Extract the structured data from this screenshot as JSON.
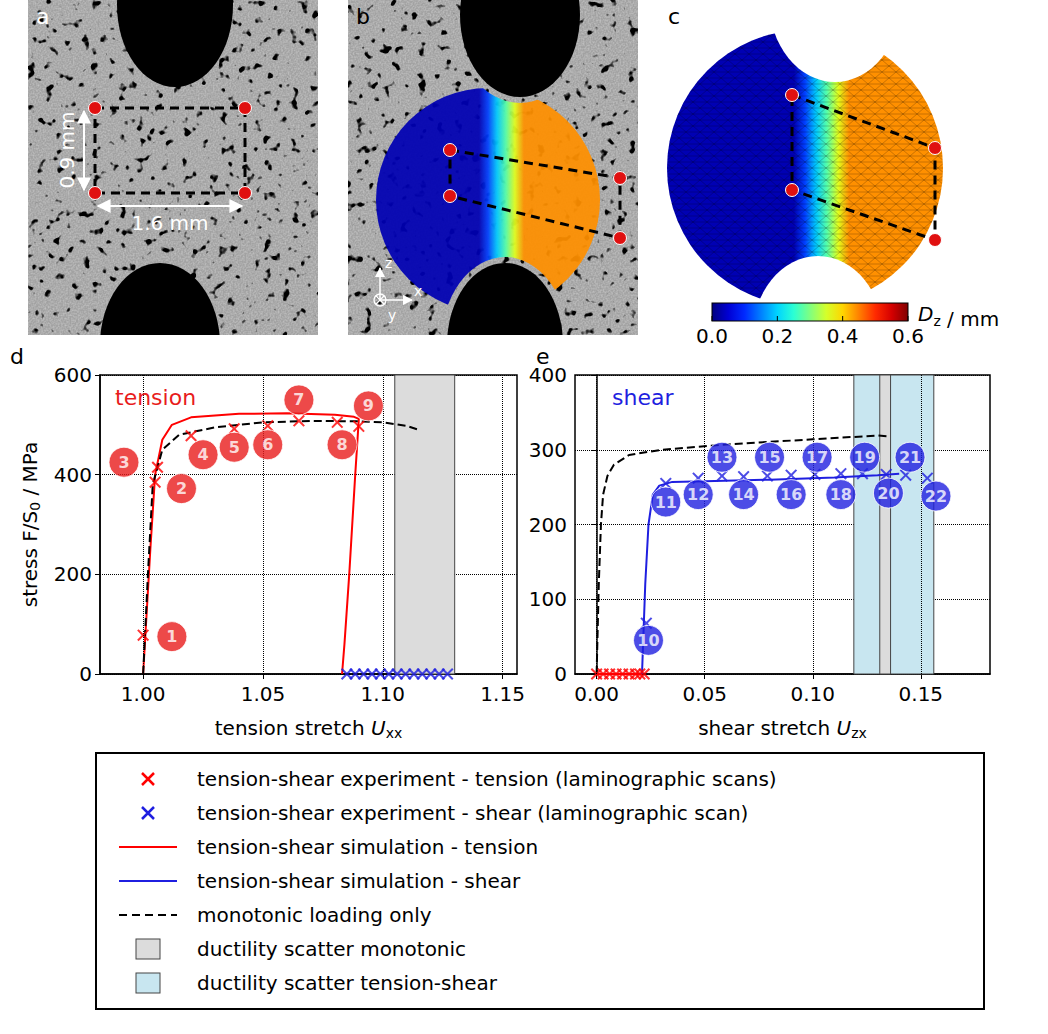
{
  "images": {
    "a": {
      "label": "a",
      "height_text": "0.9 mm",
      "width_text": "1.6 mm"
    },
    "b": {
      "label": "b",
      "axes": [
        "z",
        "y",
        "x"
      ]
    },
    "c": {
      "label": "c",
      "colorbar": {
        "range": [
          0,
          0.6
        ],
        "ticks": [
          {
            "value": 0,
            "label": "0.0"
          },
          {
            "value": 0.2,
            "label": "0.2"
          },
          {
            "value": 0.4,
            "label": "0.4"
          },
          {
            "value": 0.6,
            "label": "0.6"
          }
        ],
        "title": [
          {
            "text": "D",
            "italic": true
          },
          {
            "text": "z",
            "sub": true
          },
          {
            "text": " / mm"
          }
        ]
      }
    },
    "displacement_field": {
      "left": 0.03,
      "right": 0.44
    }
  },
  "chart_data": [
    {
      "type": "line",
      "panel": "d",
      "title": "tension",
      "color": "#e81c1c",
      "x_label": [
        {
          "text": "tension stretch "
        },
        {
          "text": "U",
          "italic": true
        },
        {
          "text": "xx",
          "sub": true
        }
      ],
      "y_label": [
        {
          "text": "stress F/S"
        },
        {
          "text": "0",
          "sub": true
        },
        {
          "text": " / MPa"
        }
      ],
      "xlim": [
        0.982,
        1.156
      ],
      "xticks": [
        {
          "value": 1,
          "label": "1.00"
        },
        {
          "value": 1.05,
          "label": "1.05"
        },
        {
          "value": 1.1,
          "label": "1.10"
        },
        {
          "value": 1.15,
          "label": "1.15"
        }
      ],
      "ylim": [
        0,
        600
      ],
      "yticks": [
        0,
        200,
        400,
        600
      ],
      "grid": true,
      "series": [
        {
          "name": "tension-shear experiment - tension (laminographic scans)",
          "type": "scatter",
          "marker": "x",
          "color": "#ff0000",
          "x": [
            1.0,
            1.005,
            1.006,
            1.02,
            1.038,
            1.052,
            1.065,
            1.081,
            1.09
          ],
          "values": [
            78,
            385,
            415,
            478,
            492,
            498,
            508,
            505,
            497
          ]
        },
        {
          "name": "tension-shear experiment - shear (laminographic scan)",
          "type": "scatter",
          "marker": "x",
          "color": "#1f1fe0",
          "x": [
            1.085,
            1.0885,
            1.092,
            1.0955,
            1.099,
            1.1025,
            1.106,
            1.1095,
            1.113,
            1.1165,
            1.12,
            1.1235,
            1.127
          ],
          "values": [
            0,
            0,
            0,
            0,
            0,
            0,
            0,
            0,
            0,
            0,
            0,
            0,
            0
          ]
        },
        {
          "name": "tension-shear simulation - tension",
          "type": "line",
          "line_style": "solid",
          "color": "#ff0000",
          "x": [
            1.0,
            1.003,
            1.005,
            1.008,
            1.012,
            1.02,
            1.04,
            1.06,
            1.08,
            1.088,
            1.09,
            1.0885,
            1.086,
            1.084,
            1.083
          ],
          "values": [
            0,
            250,
            400,
            470,
            500,
            515,
            522,
            523,
            520,
            516,
            512,
            400,
            200,
            60,
            0
          ]
        },
        {
          "name": "monotonic loading only",
          "type": "line",
          "line_style": "dashed",
          "color": "#000000",
          "x": [
            1.0,
            1.002,
            1.004,
            1.008,
            1.015,
            1.03,
            1.05,
            1.07,
            1.09,
            1.1,
            1.11,
            1.115
          ],
          "values": [
            0,
            200,
            380,
            450,
            480,
            495,
            505,
            508,
            507,
            505,
            498,
            490
          ]
        }
      ],
      "regions": [
        {
          "name": "ductility scatter monotonic",
          "color": "#dcdcdc",
          "x": [
            1.105,
            1.13
          ]
        }
      ],
      "annotations": [
        {
          "x": 1.012,
          "y": 75,
          "label": "1"
        },
        {
          "x": 1.016,
          "y": 372,
          "label": "2"
        },
        {
          "x": 0.992,
          "y": 425,
          "label": "3"
        },
        {
          "x": 1.025,
          "y": 440,
          "label": "4"
        },
        {
          "x": 1.038,
          "y": 455,
          "label": "5"
        },
        {
          "x": 1.052,
          "y": 460,
          "label": "6"
        },
        {
          "x": 1.065,
          "y": 550,
          "label": "7"
        },
        {
          "x": 1.083,
          "y": 460,
          "label": "8"
        },
        {
          "x": 1.094,
          "y": 538,
          "label": "9"
        }
      ]
    },
    {
      "type": "line",
      "panel": "e",
      "title": "shear",
      "color": "#1f1fe0",
      "x_label": [
        {
          "text": "shear stretch "
        },
        {
          "text": "U",
          "italic": true
        },
        {
          "text": "zx",
          "sub": true
        }
      ],
      "xlim": [
        -0.01,
        0.182
      ],
      "xticks": [
        {
          "value": 0,
          "label": "0.00"
        },
        {
          "value": 0.05,
          "label": "0.05"
        },
        {
          "value": 0.1,
          "label": "0.10"
        },
        {
          "value": 0.15,
          "label": "0.15"
        }
      ],
      "ylim": [
        0,
        400
      ],
      "yticks": [
        0,
        100,
        200,
        300,
        400
      ],
      "grid": true,
      "series": [
        {
          "name": "tension-shear experiment - tension (laminographic scans)",
          "type": "scatter",
          "marker": "x",
          "color": "#ff0000",
          "x": [
            0,
            0.003,
            0.006,
            0.009,
            0.012,
            0.015,
            0.018,
            0.02,
            0.022
          ],
          "values": [
            0,
            0,
            0,
            0,
            0,
            0,
            0,
            0,
            0
          ]
        },
        {
          "name": "tension-shear experiment - shear (laminographic scan)",
          "type": "scatter",
          "marker": "x",
          "color": "#1f1fe0",
          "x": [
            0.023,
            0.032,
            0.047,
            0.058,
            0.068,
            0.079,
            0.09,
            0.101,
            0.113,
            0.123,
            0.134,
            0.143,
            0.153
          ],
          "values": [
            68,
            255,
            262,
            265,
            264,
            265,
            266,
            267,
            268,
            268,
            267,
            266,
            262
          ]
        },
        {
          "name": "tension-shear simulation - tension",
          "type": "line",
          "line_style": "solid",
          "color": "#ff0000",
          "x": [
            0,
            0.021
          ],
          "values": [
            0,
            0
          ]
        },
        {
          "name": "tension-shear simulation - shear",
          "type": "line",
          "line_style": "solid",
          "color": "#1f1fe0",
          "x": [
            0.021,
            0.0225,
            0.024,
            0.026,
            0.029,
            0.035,
            0.05,
            0.08,
            0.11,
            0.13,
            0.14
          ],
          "values": [
            0,
            120,
            200,
            240,
            252,
            257,
            258,
            260,
            263,
            266,
            268
          ]
        },
        {
          "name": "monotonic loading only",
          "type": "line",
          "line_style": "dashed",
          "color": "#000000",
          "x": [
            0,
            0.001,
            0.002,
            0.003,
            0.005,
            0.008,
            0.015,
            0.03,
            0.06,
            0.1,
            0.13,
            0.135
          ],
          "values": [
            0,
            120,
            200,
            240,
            265,
            280,
            293,
            300,
            307,
            314,
            319,
            318
          ]
        }
      ],
      "regions": [
        {
          "name": "ductility scatter tension-shear",
          "color": "#c8e6f0",
          "x": [
            0.119,
            0.156
          ]
        },
        {
          "name": "ductility scatter monotonic",
          "color": "#dcdcdc",
          "x": [
            0.131,
            0.136
          ]
        }
      ],
      "annotations": [
        {
          "x": 0.024,
          "y": 45,
          "label": "10"
        },
        {
          "x": 0.032,
          "y": 230,
          "label": "11"
        },
        {
          "x": 0.047,
          "y": 240,
          "label": "12"
        },
        {
          "x": 0.058,
          "y": 290,
          "label": "13"
        },
        {
          "x": 0.068,
          "y": 240,
          "label": "14"
        },
        {
          "x": 0.08,
          "y": 290,
          "label": "15"
        },
        {
          "x": 0.09,
          "y": 240,
          "label": "16"
        },
        {
          "x": 0.102,
          "y": 290,
          "label": "17"
        },
        {
          "x": 0.113,
          "y": 240,
          "label": "18"
        },
        {
          "x": 0.124,
          "y": 290,
          "label": "19"
        },
        {
          "x": 0.135,
          "y": 242,
          "label": "20"
        },
        {
          "x": 0.145,
          "y": 290,
          "label": "21"
        },
        {
          "x": 0.157,
          "y": 238,
          "label": "22"
        }
      ]
    }
  ],
  "legend_entries": [
    "tension-shear experiment - tension (laminographic scans)",
    "tension-shear experiment - shear (laminographic scan)",
    "tension-shear simulation - tension",
    "tension-shear simulation - shear",
    "monotonic loading only",
    "ductility scatter monotonic",
    "ductility scatter tension-shear"
  ]
}
